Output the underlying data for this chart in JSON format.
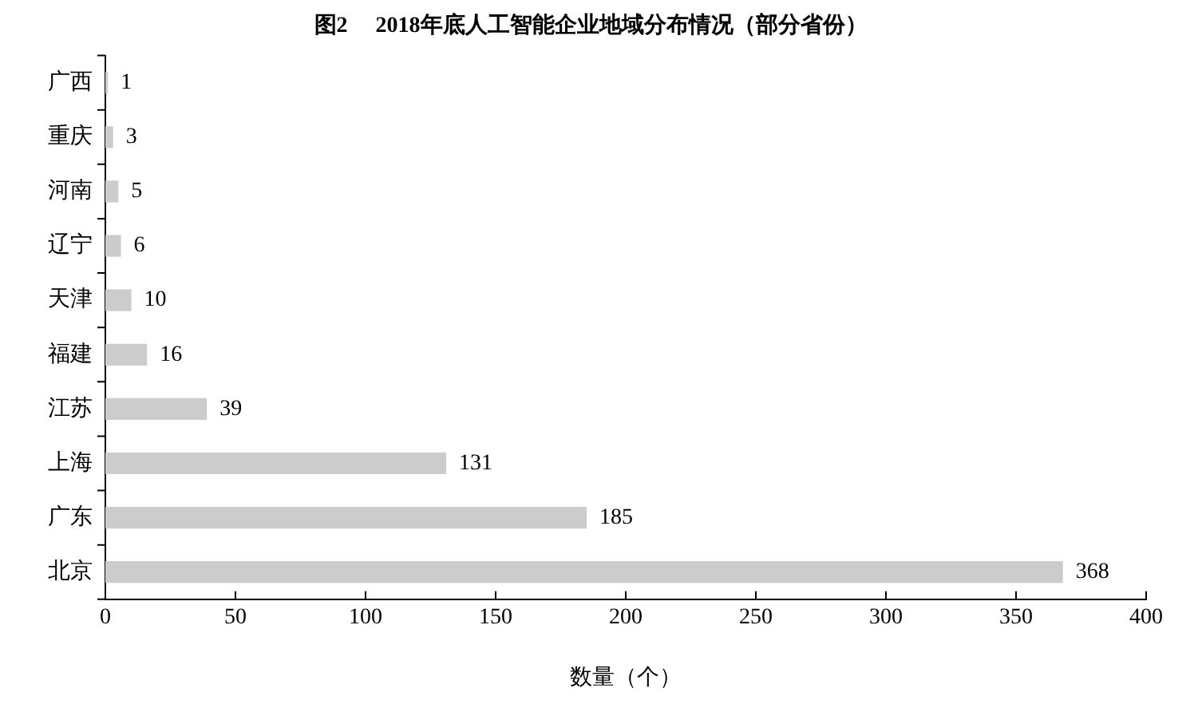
{
  "chart_data": {
    "type": "bar",
    "orientation": "horizontal",
    "title": "图2　 2018年底人工智能企业地域分布情况（部分省份）",
    "xlabel": "数量（个）",
    "categories": [
      "广西",
      "重庆",
      "河南",
      "辽宁",
      "天津",
      "福建",
      "江苏",
      "上海",
      "广东",
      "北京"
    ],
    "values": [
      1,
      3,
      5,
      6,
      10,
      16,
      39,
      131,
      185,
      368
    ],
    "color": "#cccccc",
    "xlim": [
      0,
      400
    ],
    "xticks": [
      0,
      50,
      100,
      150,
      200,
      250,
      300,
      350,
      400
    ],
    "grid": false,
    "legend": false,
    "data_labels": true
  }
}
